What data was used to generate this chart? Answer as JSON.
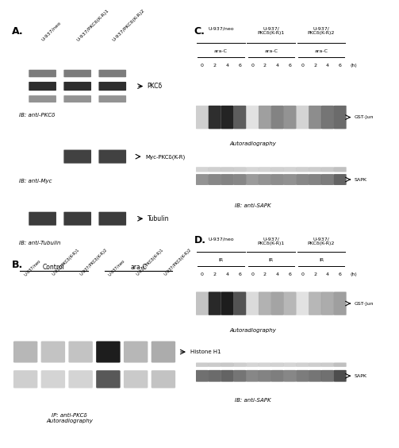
{
  "fig_width": 4.74,
  "fig_height": 5.21,
  "bg_color": "#ffffff",
  "A_label": "A.",
  "B_label": "B.",
  "C_label": "C.",
  "D_label": "D.",
  "A_cols": [
    "U-937/neo",
    "U-937/PKCδ(K-R)1",
    "U-937/PKCδ(K-R)2"
  ],
  "A_blot1_label": "IB: anti-PKCδ",
  "A_blot2_label": "IB: anti-Myc",
  "A_blot3_label": "IB: anti-Tubulin",
  "A_arrow1": "PKCδ",
  "A_arrow2": "Myc-PKCδ(K-R)",
  "A_arrow3": "Tubulin",
  "B_ctrl_label": "Control",
  "B_araC_label": "ara-C",
  "B_cols": [
    "U-937/neo",
    "U-937/PKCδ(K-R)1",
    "U-937/PKCδ(K-R)2",
    "U-937/neo",
    "U-937/PKCδ(K-R)1",
    "U-937/PKCδ(K-R)2"
  ],
  "B_bottom_label": "IP: anti-PKCδ\nAutoradiography",
  "B_arrow": "Histone H1",
  "C_grp_labels": [
    "U-937/neo",
    "U-937/\nPKCδ(K-R)1",
    "U-937/\nPKCδ(K-R)2"
  ],
  "C_treatment": "ara-C",
  "C_times": [
    "0",
    "2",
    "4",
    "6",
    "0",
    "2",
    "4",
    "6",
    "0",
    "2",
    "4",
    "6"
  ],
  "C_auto_label": "Autoradiography",
  "C_blot_label": "IB: anti-SAPK",
  "C_arrow1": "GST-Jun",
  "C_arrow2": "SAPK",
  "D_grp_labels": [
    "U-937/neo",
    "U-937/\nPKCδ(K-R)1",
    "U-937/\nPKCδ(K-R)2"
  ],
  "D_treatment": "IR",
  "D_times": [
    "0",
    "2",
    "4",
    "6",
    "0",
    "2",
    "4",
    "6",
    "0",
    "2",
    "4",
    "6"
  ],
  "D_auto_label": "Autoradiography",
  "D_blot_label": "IB: anti-SAPK",
  "D_arrow1": "GST-Jun",
  "D_arrow2": "SAPK"
}
